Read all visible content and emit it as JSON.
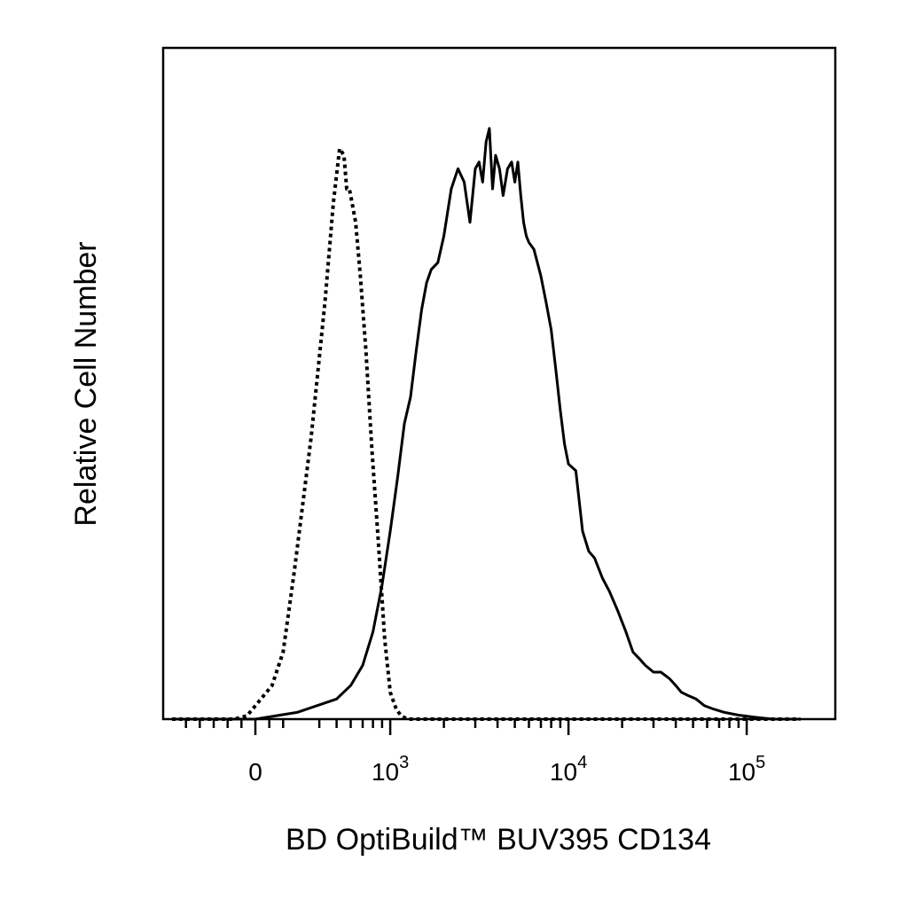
{
  "chart_data": {
    "type": "histogram",
    "title": "",
    "xlabel": "BD OptiBuild™ BUV395 CD134",
    "ylabel": "Relative Cell Number",
    "x_scale": "biexponential",
    "xlim": [
      -600,
      200000
    ],
    "ylim": [
      0,
      100
    ],
    "grid": false,
    "legend": "none",
    "x_tick_labels": [
      {
        "value": 0,
        "base": "0",
        "exp": ""
      },
      {
        "value": 1000,
        "base": "10",
        "exp": "3"
      },
      {
        "value": 10000,
        "base": "10",
        "exp": "4"
      },
      {
        "value": 100000,
        "base": "10",
        "exp": "5"
      }
    ],
    "series": [
      {
        "style": "dotted",
        "x": [
          -600,
          -150,
          -60,
          0,
          120,
          200,
          280,
          360,
          430,
          480,
          520,
          550,
          570,
          590,
          610,
          640,
          680,
          730,
          790,
          860,
          930,
          1000,
          1080,
          1150,
          1250,
          1400,
          1800,
          5000,
          200000
        ],
        "y": [
          0,
          0,
          0.5,
          2,
          5,
          10,
          22,
          42,
          62,
          77,
          85,
          84,
          79,
          79,
          77,
          74,
          66,
          55,
          40,
          26,
          12,
          4,
          1.5,
          0.5,
          0,
          0,
          0,
          0,
          0
        ]
      },
      {
        "style": "solid",
        "x": [
          -600,
          0,
          300,
          500,
          600,
          700,
          800,
          900,
          1000,
          1100,
          1200,
          1300,
          1400,
          1500,
          1600,
          1700,
          1850,
          2000,
          2200,
          2400,
          2600,
          2800,
          3000,
          3150,
          3300,
          3450,
          3600,
          3750,
          3900,
          4100,
          4300,
          4550,
          4800,
          5000,
          5200,
          5400,
          5600,
          5800,
          6000,
          6400,
          7000,
          7500,
          8000,
          8500,
          9000,
          9500,
          10000,
          11000,
          12000,
          13000,
          14000,
          15500,
          17000,
          19000,
          21000,
          23000,
          25000,
          27000,
          30000,
          33000,
          37000,
          40000,
          43000,
          47000,
          52000,
          58000,
          65000,
          75000,
          90000,
          110000,
          140000,
          200000
        ],
        "y": [
          0,
          0,
          1,
          3,
          5,
          8,
          13,
          20,
          28,
          36,
          44,
          48,
          55,
          61,
          65,
          67,
          68,
          72,
          79,
          82,
          80,
          74,
          82,
          83,
          80,
          86,
          88,
          79,
          84,
          82,
          78,
          82,
          83,
          80,
          83,
          78,
          74,
          72,
          71,
          70,
          66,
          62,
          58,
          52,
          46,
          41,
          38,
          37,
          28,
          25,
          24,
          21,
          19,
          16,
          13,
          10,
          9,
          8,
          7,
          7,
          6,
          5,
          4,
          3.5,
          3,
          2,
          1.5,
          1,
          0.6,
          0.3,
          0,
          0
        ]
      }
    ]
  }
}
